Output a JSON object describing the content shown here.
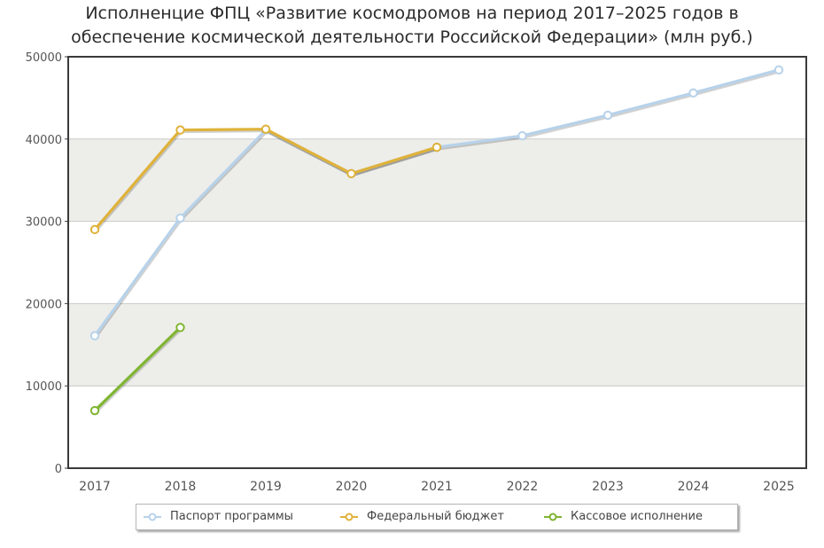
{
  "title": {
    "line1": "Исполненцие ФПЦ «Развитие космодромов на период 2017–2025 годов в",
    "line2": "обеспечение космической деятельности Российской Федерации» (млн руб.)"
  },
  "colors": {
    "passport": "#b7d2ea",
    "federal": "#dfb23a",
    "cash": "#7fb531",
    "band": "#ededea",
    "grid": "#c8c8c8",
    "frame": "#3a3a3a"
  },
  "chart_data": {
    "type": "line",
    "title": "Исполненцие ФПЦ «Развитие космодромов на период 2017–2025 годов в обеспечение космической деятельности Российской Федерации» (млн руб.)",
    "xlabel": "",
    "ylabel": "",
    "categories": [
      "2017",
      "2018",
      "2019",
      "2020",
      "2021",
      "2022",
      "2023",
      "2024",
      "2025"
    ],
    "ylim": [
      0,
      50000
    ],
    "yticks": [
      "0",
      "10000",
      "20000",
      "30000",
      "40000",
      "50000"
    ],
    "grid": true,
    "legend_position": "bottom",
    "series": [
      {
        "name": "Паспорт программы",
        "key": "passport",
        "values": [
          16100,
          30400,
          41100,
          35800,
          39000,
          40400,
          42900,
          45600,
          48400
        ]
      },
      {
        "name": "Федеральный бюджет",
        "key": "federal",
        "values": [
          29000,
          41100,
          41200,
          35800,
          39000,
          null,
          null,
          null,
          null
        ]
      },
      {
        "name": "Кассовое исполнение",
        "key": "cash",
        "values": [
          7000,
          17100,
          null,
          null,
          null,
          null,
          null,
          null,
          null
        ]
      }
    ]
  }
}
